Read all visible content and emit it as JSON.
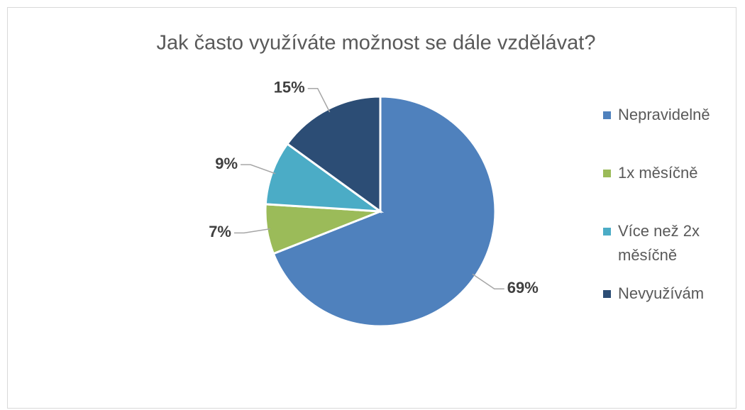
{
  "chart_data": {
    "type": "pie",
    "title": "Jak často využíváte možnost se dále vzdělávat?",
    "categories": [
      "Nepravidelně",
      "1x měsíčně",
      "Více než 2x měsíčně",
      "Nevyužívám"
    ],
    "values": [
      69,
      7,
      9,
      15
    ],
    "value_labels": [
      "69%",
      "7%",
      "9%",
      "15%"
    ],
    "colors": [
      "#4f81bd",
      "#9bbb59",
      "#4bacc6",
      "#2c4d75"
    ],
    "legend": "right"
  }
}
